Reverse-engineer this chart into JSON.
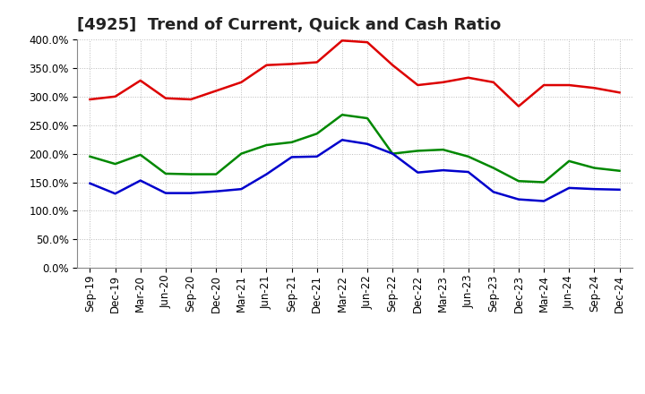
{
  "title": "[4925]  Trend of Current, Quick and Cash Ratio",
  "labels": [
    "Sep-19",
    "Dec-19",
    "Mar-20",
    "Jun-20",
    "Sep-20",
    "Dec-20",
    "Mar-21",
    "Jun-21",
    "Sep-21",
    "Dec-21",
    "Mar-22",
    "Jun-22",
    "Sep-22",
    "Dec-22",
    "Mar-23",
    "Jun-23",
    "Sep-23",
    "Dec-23",
    "Mar-24",
    "Jun-24",
    "Sep-24",
    "Dec-24"
  ],
  "current_ratio": [
    295,
    300,
    328,
    297,
    295,
    310,
    325,
    355,
    357,
    360,
    398,
    395,
    355,
    320,
    325,
    333,
    325,
    283,
    320,
    320,
    315,
    307
  ],
  "quick_ratio": [
    195,
    182,
    198,
    165,
    164,
    164,
    200,
    215,
    220,
    235,
    268,
    262,
    200,
    205,
    207,
    195,
    175,
    152,
    150,
    187,
    175,
    170
  ],
  "cash_ratio": [
    148,
    130,
    153,
    131,
    131,
    134,
    138,
    164,
    194,
    195,
    224,
    217,
    200,
    167,
    171,
    168,
    133,
    120,
    117,
    140,
    138,
    137
  ],
  "current_color": "#dd0000",
  "quick_color": "#008800",
  "cash_color": "#0000cc",
  "bg_color": "#ffffff",
  "plot_bg_color": "#ffffff",
  "grid_color": "#bbbbbb",
  "ylim": [
    0,
    400
  ],
  "yticks": [
    0,
    50,
    100,
    150,
    200,
    250,
    300,
    350,
    400
  ],
  "title_fontsize": 13,
  "legend_fontsize": 10,
  "tick_fontsize": 8.5,
  "line_width": 1.8
}
